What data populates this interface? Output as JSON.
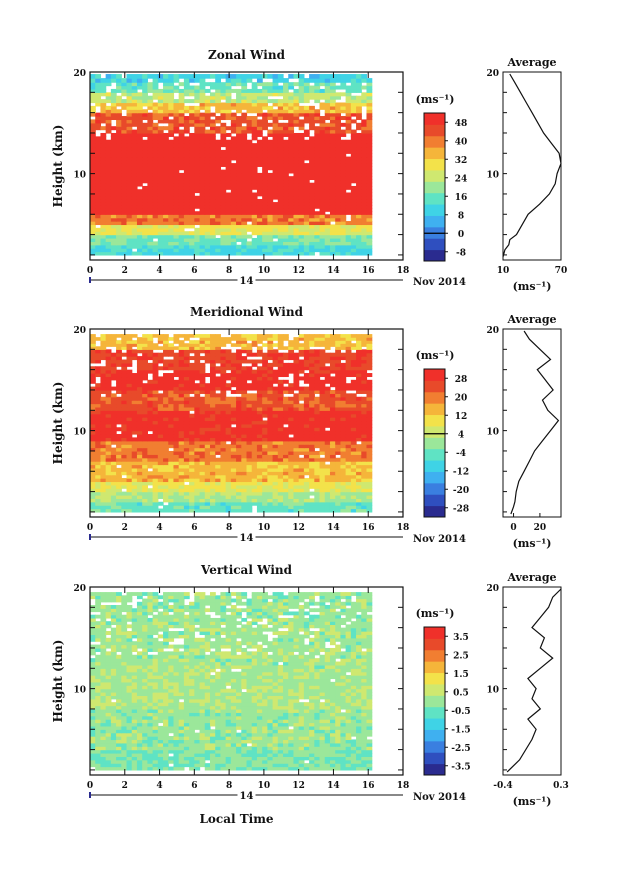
{
  "figure": {
    "panels": [
      {
        "title": "Zonal Wind",
        "unit": "(ms⁻¹)",
        "avg_title": "Average",
        "avg_unit": "(ms⁻¹)",
        "day_label": "14",
        "month_label": "Nov 2014",
        "ylabel": "Height (km)"
      },
      {
        "title": "Meridional Wind",
        "unit": "(ms⁻¹)",
        "avg_title": "Average",
        "avg_unit": "(ms⁻¹)",
        "day_label": "14",
        "month_label": "Nov 2014",
        "ylabel": "Height (km)"
      },
      {
        "title": "Vertical Wind",
        "unit": "(ms⁻¹)",
        "avg_title": "Average",
        "avg_unit": "(ms⁻¹)",
        "day_label": "14",
        "month_label": "Nov 2014",
        "ylabel": "Height (km)"
      }
    ],
    "xlabel": "Local Time",
    "colormap": [
      "#2a2b8f",
      "#2f4fbf",
      "#3a7fe0",
      "#3fb0f0",
      "#3fd3e6",
      "#5fe3c4",
      "#9be79a",
      "#cfe870",
      "#f3e24a",
      "#f5b53a",
      "#f17e31",
      "#e84a2a",
      "#f0302a"
    ]
  },
  "chart_data": [
    {
      "type": "heatmap",
      "title": "Zonal Wind",
      "xlabel": "",
      "ylabel": "Height (km)",
      "x_ticks": [
        0,
        2,
        4,
        6,
        8,
        10,
        12,
        14,
        16,
        18
      ],
      "xlim": [
        0,
        18
      ],
      "data_xlim": [
        0,
        16.2
      ],
      "y_ticks": [
        10,
        20
      ],
      "ylim": [
        1.5,
        20
      ],
      "colorbar": {
        "ticks": [
          -8,
          0,
          8,
          16,
          24,
          32,
          40,
          48
        ],
        "range": [
          -12,
          52
        ],
        "unit": "(ms⁻¹)",
        "zero_line": 0
      },
      "profile": [
        [
          1.8,
          10
        ],
        [
          2.5,
          12
        ],
        [
          3.0,
          16
        ],
        [
          3.5,
          17
        ],
        [
          4.0,
          24
        ],
        [
          5,
          30
        ],
        [
          6,
          36
        ],
        [
          7,
          48
        ],
        [
          8,
          58
        ],
        [
          9,
          64
        ],
        [
          10,
          66
        ],
        [
          11,
          70
        ],
        [
          12,
          68
        ],
        [
          13,
          60
        ],
        [
          14,
          52
        ],
        [
          15,
          46
        ],
        [
          16,
          40
        ],
        [
          17,
          34
        ],
        [
          18,
          28
        ],
        [
          19,
          22
        ],
        [
          19.8,
          17
        ]
      ],
      "profile_xlim": [
        10,
        70
      ],
      "profile_xticks": [
        10,
        70
      ],
      "rows": [
        {
          "h": [
            2,
            3
          ],
          "v": 12
        },
        {
          "h": [
            3,
            4
          ],
          "v": 18
        },
        {
          "h": [
            4,
            5
          ],
          "v": 28
        },
        {
          "h": [
            5,
            6
          ],
          "v": 40
        },
        {
          "h": [
            6,
            7.5
          ],
          "v": 55
        },
        {
          "h": [
            7.5,
            12
          ],
          "v": 60
        },
        {
          "h": [
            12,
            14
          ],
          "v": 54
        },
        {
          "h": [
            14,
            16
          ],
          "v": 44
        },
        {
          "h": [
            16,
            17
          ],
          "v": 34
        },
        {
          "h": [
            17,
            18
          ],
          "v": 24
        },
        {
          "h": [
            18,
            19
          ],
          "v": 16
        },
        {
          "h": [
            19,
            19.8
          ],
          "v": 10
        }
      ]
    },
    {
      "type": "heatmap",
      "title": "Meridional Wind",
      "xlabel": "",
      "ylabel": "Height (km)",
      "x_ticks": [
        0,
        2,
        4,
        6,
        8,
        10,
        12,
        14,
        16,
        18
      ],
      "xlim": [
        0,
        18
      ],
      "data_xlim": [
        0,
        16.2
      ],
      "y_ticks": [
        10,
        20
      ],
      "ylim": [
        1.5,
        20
      ],
      "colorbar": {
        "ticks": [
          -28,
          -20,
          -12,
          -4,
          4,
          12,
          20,
          28
        ],
        "range": [
          -32,
          32
        ],
        "unit": "(ms⁻¹)",
        "zero_line": 4
      },
      "profile": [
        [
          1.8,
          -2
        ],
        [
          2.5,
          0
        ],
        [
          3,
          1
        ],
        [
          4,
          2
        ],
        [
          5,
          4
        ],
        [
          6,
          8
        ],
        [
          7,
          12
        ],
        [
          8,
          16
        ],
        [
          9,
          22
        ],
        [
          10,
          28
        ],
        [
          11,
          34
        ],
        [
          12,
          26
        ],
        [
          13,
          22
        ],
        [
          14,
          30
        ],
        [
          15,
          24
        ],
        [
          16,
          18
        ],
        [
          17,
          28
        ],
        [
          18,
          20
        ],
        [
          19,
          12
        ],
        [
          19.8,
          8
        ]
      ],
      "profile_xlim": [
        -8,
        36
      ],
      "profile_xticks": [
        0,
        20
      ],
      "rows": [
        {
          "h": [
            2,
            3
          ],
          "v": -4
        },
        {
          "h": [
            3,
            4
          ],
          "v": 2
        },
        {
          "h": [
            4,
            5
          ],
          "v": 8
        },
        {
          "h": [
            5,
            7
          ],
          "v": 14
        },
        {
          "h": [
            7,
            9
          ],
          "v": 20
        },
        {
          "h": [
            9,
            12
          ],
          "v": 30
        },
        {
          "h": [
            12,
            14
          ],
          "v": 24
        },
        {
          "h": [
            14,
            16
          ],
          "v": 30
        },
        {
          "h": [
            16,
            18
          ],
          "v": 26
        },
        {
          "h": [
            18,
            19.5
          ],
          "v": 14
        }
      ]
    },
    {
      "type": "heatmap",
      "title": "Vertical Wind",
      "xlabel": "Local Time",
      "ylabel": "Height (km)",
      "x_ticks": [
        0,
        2,
        4,
        6,
        8,
        10,
        12,
        14,
        16,
        18
      ],
      "xlim": [
        0,
        18
      ],
      "data_xlim": [
        0,
        16.2
      ],
      "y_ticks": [
        10,
        20
      ],
      "ylim": [
        1.5,
        20
      ],
      "colorbar": {
        "ticks": [
          -3.5,
          -2.5,
          -1.5,
          -0.5,
          0.5,
          1.5,
          2.5,
          3.5
        ],
        "range": [
          -4,
          4
        ],
        "unit": "(ms⁻¹)"
      },
      "profile": [
        [
          1.8,
          -0.35
        ],
        [
          3,
          -0.2
        ],
        [
          5,
          -0.05
        ],
        [
          6,
          0.0
        ],
        [
          7,
          -0.1
        ],
        [
          8,
          0.05
        ],
        [
          9,
          -0.05
        ],
        [
          10,
          0.0
        ],
        [
          11,
          -0.1
        ],
        [
          12,
          0.05
        ],
        [
          13,
          0.2
        ],
        [
          14,
          0.05
        ],
        [
          15,
          0.1
        ],
        [
          16,
          -0.05
        ],
        [
          17,
          0.05
        ],
        [
          18,
          0.15
        ],
        [
          19,
          0.2
        ],
        [
          19.8,
          0.3
        ]
      ],
      "profile_xlim": [
        -0.4,
        0.3
      ],
      "profile_xticks": [
        -0.4,
        0.3
      ],
      "rows": [
        {
          "h": [
            2,
            4
          ],
          "v": -0.3
        },
        {
          "h": [
            4,
            8
          ],
          "v": 0.0
        },
        {
          "h": [
            8,
            12
          ],
          "v": 0.2
        },
        {
          "h": [
            12,
            16
          ],
          "v": 0.1
        },
        {
          "h": [
            16,
            19.5
          ],
          "v": 0.0
        }
      ]
    }
  ]
}
